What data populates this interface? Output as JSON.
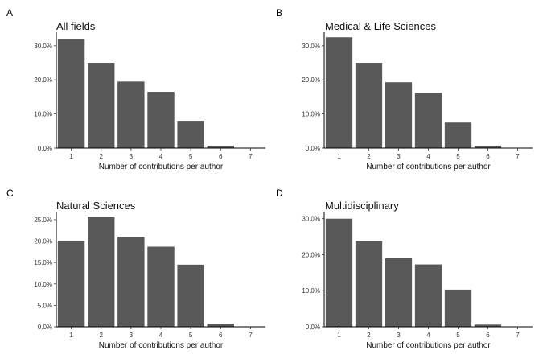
{
  "chart_data": [
    {
      "panel": "A",
      "type": "bar",
      "title": "All fields",
      "xlabel": "Number of contributions per author",
      "ylabel": "",
      "categories": [
        "1",
        "2",
        "3",
        "4",
        "5",
        "6",
        "7"
      ],
      "values": [
        32.0,
        25.0,
        19.5,
        16.5,
        8.0,
        0.7,
        0.0
      ],
      "yticks": [
        "0.0%",
        "10.0%",
        "20.0%",
        "30.0%"
      ],
      "ytick_values": [
        0,
        10,
        20,
        30
      ],
      "ylim": [
        0,
        33.5
      ],
      "bar_color": "#595959"
    },
    {
      "panel": "B",
      "type": "bar",
      "title": "Medical & Life Sciences",
      "xlabel": "Number of contributions per author",
      "ylabel": "",
      "categories": [
        "1",
        "2",
        "3",
        "4",
        "5",
        "6",
        "7"
      ],
      "values": [
        32.5,
        25.0,
        19.3,
        16.2,
        7.5,
        0.7,
        0.0
      ],
      "yticks": [
        "0.0%",
        "10.0%",
        "20.0%",
        "30.0%"
      ],
      "ytick_values": [
        0,
        10,
        20,
        30
      ],
      "ylim": [
        0,
        33.5
      ],
      "bar_color": "#595959"
    },
    {
      "panel": "C",
      "type": "bar",
      "title": "Natural Sciences",
      "xlabel": "Number of contributions per author",
      "ylabel": "",
      "categories": [
        "1",
        "2",
        "3",
        "4",
        "5",
        "6",
        "7"
      ],
      "values": [
        20.0,
        25.7,
        21.0,
        18.7,
        14.5,
        0.7,
        0.0
      ],
      "yticks": [
        "0.0%",
        "5.0%",
        "10.0%",
        "15.0%",
        "20.0%",
        "25.0%"
      ],
      "ytick_values": [
        0,
        5,
        10,
        15,
        20,
        25
      ],
      "ylim": [
        0,
        26.5
      ],
      "bar_color": "#595959"
    },
    {
      "panel": "D",
      "type": "bar",
      "title": "Multidisciplinary",
      "xlabel": "Number of contributions per author",
      "ylabel": "",
      "categories": [
        "1",
        "2",
        "3",
        "4",
        "5",
        "6",
        "7"
      ],
      "values": [
        30.0,
        23.8,
        19.0,
        17.3,
        10.3,
        0.6,
        0.0
      ],
      "yticks": [
        "0.0%",
        "10.0%",
        "20.0%",
        "30.0%"
      ],
      "ytick_values": [
        0,
        10,
        20,
        30
      ],
      "ylim": [
        0,
        31.5
      ],
      "bar_color": "#595959"
    }
  ]
}
